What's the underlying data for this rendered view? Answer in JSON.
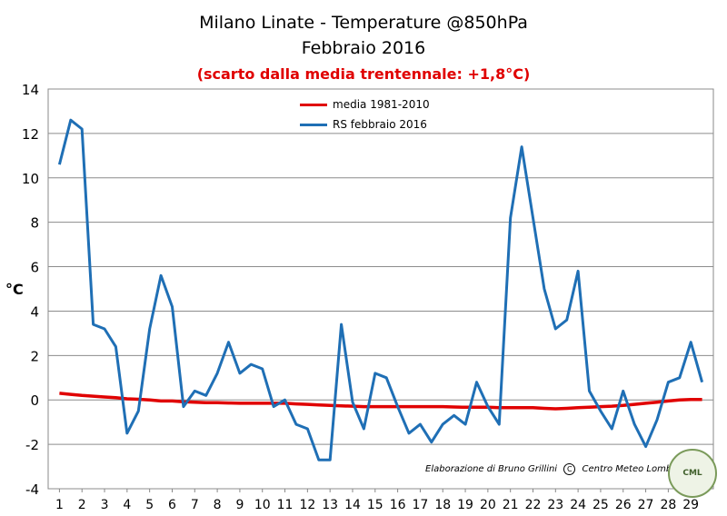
{
  "chart_data": {
    "type": "line",
    "title": "Milano Linate - Temperature @850hPa",
    "title_line2": "Febbraio 2016",
    "subtitle": "(scarto dalla media trentennale: +1,8°C)",
    "ylabel": "°C",
    "xlabel": "",
    "ylim": [
      -4,
      14
    ],
    "yticks": [
      -4,
      -2,
      0,
      2,
      4,
      6,
      8,
      10,
      12,
      14
    ],
    "xticks": [
      1,
      2,
      3,
      4,
      5,
      6,
      7,
      8,
      9,
      10,
      11,
      12,
      13,
      14,
      15,
      16,
      17,
      18,
      19,
      20,
      21,
      22,
      23,
      24,
      25,
      26,
      27,
      28,
      29
    ],
    "grid": true,
    "legend_position": "top-center",
    "x": [
      1,
      1.5,
      2,
      2.5,
      3,
      3.5,
      4,
      4.5,
      5,
      5.5,
      6,
      6.5,
      7,
      7.5,
      8,
      8.5,
      9,
      9.5,
      10,
      10.5,
      11,
      11.5,
      12,
      12.5,
      13,
      13.5,
      14,
      14.5,
      15,
      15.5,
      16,
      16.5,
      17,
      17.5,
      18,
      18.5,
      19,
      19.5,
      20,
      20.5,
      21,
      21.5,
      22,
      22.5,
      23,
      23.5,
      24,
      24.5,
      25,
      25.5,
      26,
      26.5,
      27,
      27.5,
      28,
      28.5,
      29,
      29.5
    ],
    "series": [
      {
        "name": "media 1981-2010",
        "color": "#e00000",
        "values": [
          0.3,
          0.25,
          0.2,
          0.17,
          0.13,
          0.1,
          0.05,
          0.03,
          0,
          -0.05,
          -0.05,
          -0.08,
          -0.1,
          -0.12,
          -0.12,
          -0.14,
          -0.15,
          -0.15,
          -0.15,
          -0.15,
          -0.15,
          -0.18,
          -0.2,
          -0.23,
          -0.25,
          -0.27,
          -0.28,
          -0.3,
          -0.3,
          -0.3,
          -0.3,
          -0.3,
          -0.3,
          -0.3,
          -0.3,
          -0.32,
          -0.33,
          -0.33,
          -0.33,
          -0.35,
          -0.35,
          -0.35,
          -0.35,
          -0.38,
          -0.4,
          -0.38,
          -0.35,
          -0.33,
          -0.3,
          -0.28,
          -0.25,
          -0.2,
          -0.15,
          -0.1,
          -0.05,
          0,
          0.02,
          0.02
        ]
      },
      {
        "name": "RS febbraio 2016",
        "color": "#1f6fb5",
        "values": [
          10.6,
          12.6,
          12.2,
          3.4,
          3.2,
          2.4,
          -1.5,
          -0.5,
          3.2,
          5.6,
          4.2,
          -0.3,
          0.4,
          0.2,
          1.2,
          2.6,
          1.2,
          1.6,
          1.4,
          -0.3,
          0,
          -1.1,
          -1.3,
          -2.7,
          -2.7,
          3.4,
          -0.1,
          -1.3,
          1.2,
          1,
          -0.3,
          -1.5,
          -1.1,
          -1.9,
          -1.1,
          -0.7,
          -1.1,
          0.8,
          -0.3,
          -1.1,
          8.2,
          11.4,
          8.2,
          5,
          3.2,
          3.6,
          5.8,
          0.4,
          -0.5,
          -1.3,
          0.4,
          -1.1,
          -2.1,
          -0.9,
          0.8,
          1,
          2.6,
          0.8
        ]
      }
    ]
  },
  "credit": {
    "text_before": "Elaborazione di Bruno Grillini",
    "symbol": "C",
    "text_after": "Centro Meteo Lombardo"
  },
  "logo": {
    "label": "CML",
    "icon": "centro-meteo-lombardo-logo"
  }
}
